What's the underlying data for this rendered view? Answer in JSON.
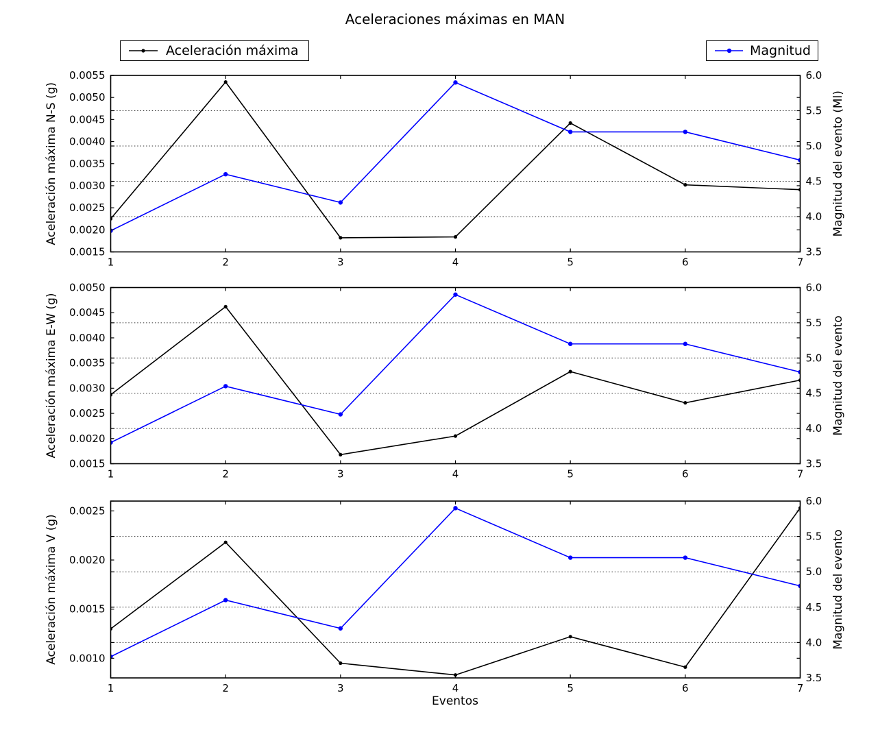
{
  "figure_title": "Aceleraciones máximas en MAN",
  "xlabel": "Eventos",
  "colors": {
    "acceleration": "#000000",
    "magnitude": "#0000ff",
    "background": "#ffffff",
    "grid": "#000000"
  },
  "legend": {
    "acceleration": {
      "label": "Aceleración máxima",
      "color": "#000000"
    },
    "magnitude": {
      "label": "Magnitud",
      "color": "#0000ff"
    }
  },
  "chart_data": [
    {
      "type": "line",
      "id": "ns",
      "panel": "N-S",
      "x": [
        1,
        2,
        3,
        4,
        5,
        6,
        7
      ],
      "xticks": [
        "1",
        "2",
        "3",
        "4",
        "5",
        "6",
        "7"
      ],
      "xlim": [
        1,
        7
      ],
      "grid": "horizontal dotted lines at right-axis ticks",
      "left_axis": {
        "label": "Aceleración máxima N-S (g)",
        "lim": [
          0.0015,
          0.0055
        ],
        "ticks": [
          0.0015,
          0.002,
          0.0025,
          0.003,
          0.0035,
          0.004,
          0.0045,
          0.005,
          0.0055
        ],
        "tick_labels": [
          "0.0015",
          "0.0020",
          "0.0025",
          "0.0030",
          "0.0035",
          "0.0040",
          "0.0045",
          "0.0050",
          "0.0055"
        ]
      },
      "right_axis": {
        "label": "Magnitud del evento (Ml)",
        "lim": [
          3.5,
          6.0
        ],
        "ticks": [
          3.5,
          4.0,
          4.5,
          5.0,
          5.5,
          6.0
        ],
        "tick_labels": [
          "3.5",
          "4.0",
          "4.5",
          "5.0",
          "5.5",
          "6.0"
        ]
      },
      "series": [
        {
          "name": "Aceleración máxima",
          "axis": "left",
          "color": "#000000",
          "values": [
            0.00225,
            0.00535,
            0.00182,
            0.00184,
            0.00442,
            0.00302,
            0.00291
          ]
        },
        {
          "name": "Magnitud",
          "axis": "right",
          "color": "#0000ff",
          "values": [
            3.8,
            4.6,
            4.2,
            5.9,
            5.2,
            5.2,
            4.8
          ]
        }
      ]
    },
    {
      "type": "line",
      "id": "ew",
      "panel": "E-W",
      "x": [
        1,
        2,
        3,
        4,
        5,
        6,
        7
      ],
      "xticks": [
        "1",
        "2",
        "3",
        "4",
        "5",
        "6",
        "7"
      ],
      "xlim": [
        1,
        7
      ],
      "grid": "horizontal dotted lines at right-axis ticks",
      "left_axis": {
        "label": "Aceleración máxima E-W (g)",
        "lim": [
          0.0015,
          0.005
        ],
        "ticks": [
          0.0015,
          0.002,
          0.0025,
          0.003,
          0.0035,
          0.004,
          0.0045,
          0.005
        ],
        "tick_labels": [
          "0.0015",
          "0.0020",
          "0.0025",
          "0.0030",
          "0.0035",
          "0.0040",
          "0.0045",
          "0.0050"
        ]
      },
      "right_axis": {
        "label": "Magnitud del evento",
        "lim": [
          3.5,
          6.0
        ],
        "ticks": [
          3.5,
          4.0,
          4.5,
          5.0,
          5.5,
          6.0
        ],
        "tick_labels": [
          "3.5",
          "4.0",
          "4.5",
          "5.0",
          "5.5",
          "6.0"
        ]
      },
      "series": [
        {
          "name": "Aceleración máxima",
          "axis": "left",
          "color": "#000000",
          "values": [
            0.00287,
            0.00462,
            0.00168,
            0.00205,
            0.00333,
            0.00271,
            0.00316
          ]
        },
        {
          "name": "Magnitud",
          "axis": "right",
          "color": "#0000ff",
          "values": [
            3.8,
            4.6,
            4.2,
            5.9,
            5.2,
            5.2,
            4.8
          ]
        }
      ]
    },
    {
      "type": "line",
      "id": "v",
      "panel": "V",
      "x": [
        1,
        2,
        3,
        4,
        5,
        6,
        7
      ],
      "xticks": [
        "1",
        "2",
        "3",
        "4",
        "5",
        "6",
        "7"
      ],
      "xlim": [
        1,
        7
      ],
      "grid": "horizontal dotted lines at right-axis ticks",
      "left_axis": {
        "label": "Aceleración máxima V (g)",
        "lim": [
          0.0008,
          0.0026
        ],
        "ticks": [
          0.001,
          0.0015,
          0.002,
          0.0025
        ],
        "tick_labels": [
          "0.0010",
          "0.0015",
          "0.0020",
          "0.0025"
        ]
      },
      "right_axis": {
        "label": "Magnitud del evento",
        "lim": [
          3.5,
          6.0
        ],
        "ticks": [
          3.5,
          4.0,
          4.5,
          5.0,
          5.5,
          6.0
        ],
        "tick_labels": [
          "3.5",
          "4.0",
          "4.5",
          "5.0",
          "5.5",
          "6.0"
        ]
      },
      "series": [
        {
          "name": "Aceleración máxima",
          "axis": "left",
          "color": "#000000",
          "values": [
            0.0013,
            0.00218,
            0.00095,
            0.00083,
            0.00122,
            0.00091,
            0.00253
          ]
        },
        {
          "name": "Magnitud",
          "axis": "right",
          "color": "#0000ff",
          "values": [
            3.8,
            4.6,
            4.2,
            5.9,
            5.2,
            5.2,
            4.8
          ]
        }
      ]
    }
  ]
}
